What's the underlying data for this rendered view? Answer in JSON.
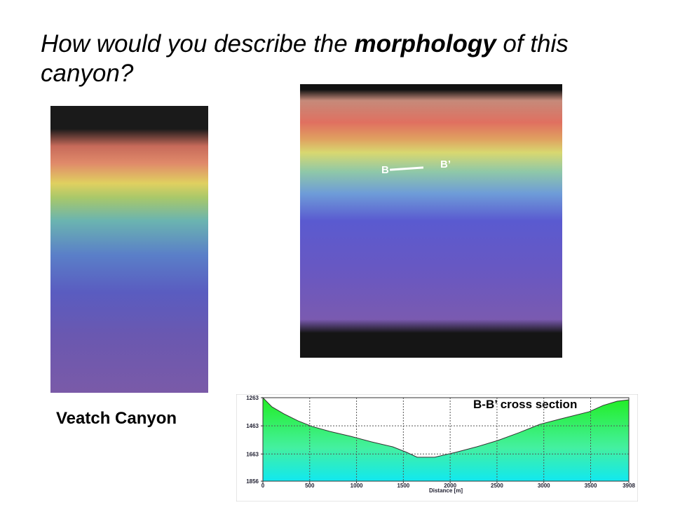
{
  "title": {
    "parts": [
      "How would you describe the ",
      "morphology",
      " of this canyon?"
    ]
  },
  "left_image": {
    "caption": "Veatch Canyon"
  },
  "right_image": {
    "label_start": "B",
    "label_end": "B’"
  },
  "cross_section": {
    "type": "area",
    "title": "B-B’ cross section",
    "x_label": "Distance [m]",
    "x": [
      0,
      97,
      225,
      374,
      524,
      712,
      936,
      1161,
      1386,
      1535,
      1648,
      1835,
      2060,
      2284,
      2509,
      2734,
      2958,
      3183,
      3483,
      3633,
      3783,
      3908
    ],
    "y": [
      1263,
      1328,
      1378,
      1427,
      1467,
      1502,
      1537,
      1577,
      1612,
      1651,
      1686,
      1686,
      1651,
      1612,
      1567,
      1512,
      1452,
      1413,
      1363,
      1318,
      1288,
      1278
    ],
    "xlim": [
      0,
      3908
    ],
    "ylim": [
      1856,
      1263
    ],
    "xticks": [
      0,
      500,
      1000,
      1500,
      2000,
      2500,
      3000,
      3500,
      3908
    ],
    "yticks": [
      1263,
      1463,
      1663,
      1856
    ],
    "inverted_y": true,
    "grid": true
  }
}
